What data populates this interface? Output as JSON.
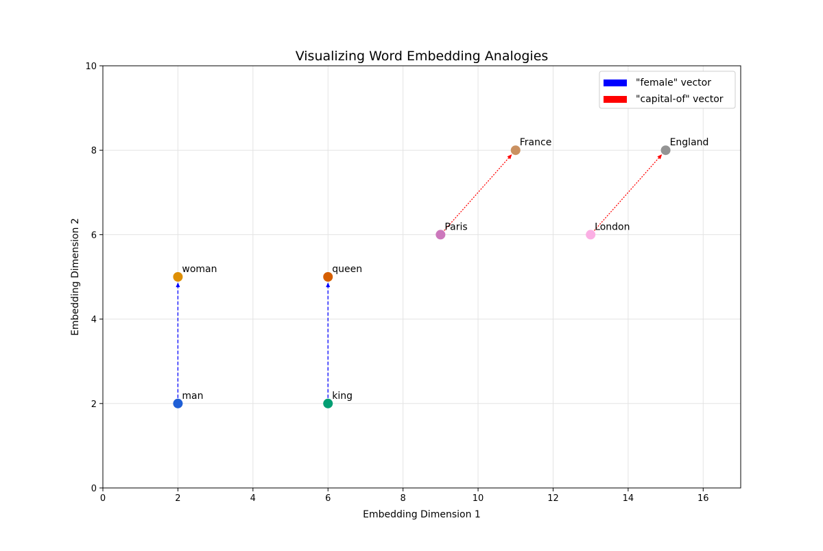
{
  "chart_data": {
    "type": "scatter",
    "title": "Visualizing Word Embedding Analogies",
    "xlabel": "Embedding Dimension 1",
    "ylabel": "Embedding Dimension 2",
    "xlim": [
      0,
      17
    ],
    "ylim": [
      0,
      10
    ],
    "xticks": [
      0,
      2,
      4,
      6,
      8,
      10,
      12,
      14,
      16
    ],
    "yticks": [
      0,
      2,
      4,
      6,
      8,
      10
    ],
    "grid": true,
    "legend_position": "top-right",
    "points": [
      {
        "label": "man",
        "x": 2,
        "y": 2,
        "color": "#1f5fd6"
      },
      {
        "label": "woman",
        "x": 2,
        "y": 5,
        "color": "#de8f05"
      },
      {
        "label": "king",
        "x": 6,
        "y": 2,
        "color": "#029e73"
      },
      {
        "label": "queen",
        "x": 6,
        "y": 5,
        "color": "#d55e00"
      },
      {
        "label": "Paris",
        "x": 9,
        "y": 6,
        "color": "#cc78bc"
      },
      {
        "label": "France",
        "x": 11,
        "y": 8,
        "color": "#ca9161"
      },
      {
        "label": "London",
        "x": 13,
        "y": 6,
        "color": "#fbafe4"
      },
      {
        "label": "England",
        "x": 15,
        "y": 8,
        "color": "#949494"
      }
    ],
    "vectors": [
      {
        "series": "\"female\" vector",
        "from": [
          2,
          2
        ],
        "to": [
          2,
          5
        ],
        "color": "#0000ff",
        "style": "dashed"
      },
      {
        "series": "\"female\" vector",
        "from": [
          6,
          2
        ],
        "to": [
          6,
          5
        ],
        "color": "#0000ff",
        "style": "dashed"
      },
      {
        "series": "\"capital-of\" vector",
        "from": [
          9,
          6
        ],
        "to": [
          11,
          8
        ],
        "color": "#ff0000",
        "style": "dotted"
      },
      {
        "series": "\"capital-of\" vector",
        "from": [
          13,
          6
        ],
        "to": [
          15,
          8
        ],
        "color": "#ff0000",
        "style": "dotted"
      }
    ],
    "legend": [
      {
        "name": "\"female\" vector",
        "color": "#0000ff",
        "style": "dashed"
      },
      {
        "name": "\"capital-of\" vector",
        "color": "#ff0000",
        "style": "dotted"
      }
    ]
  }
}
